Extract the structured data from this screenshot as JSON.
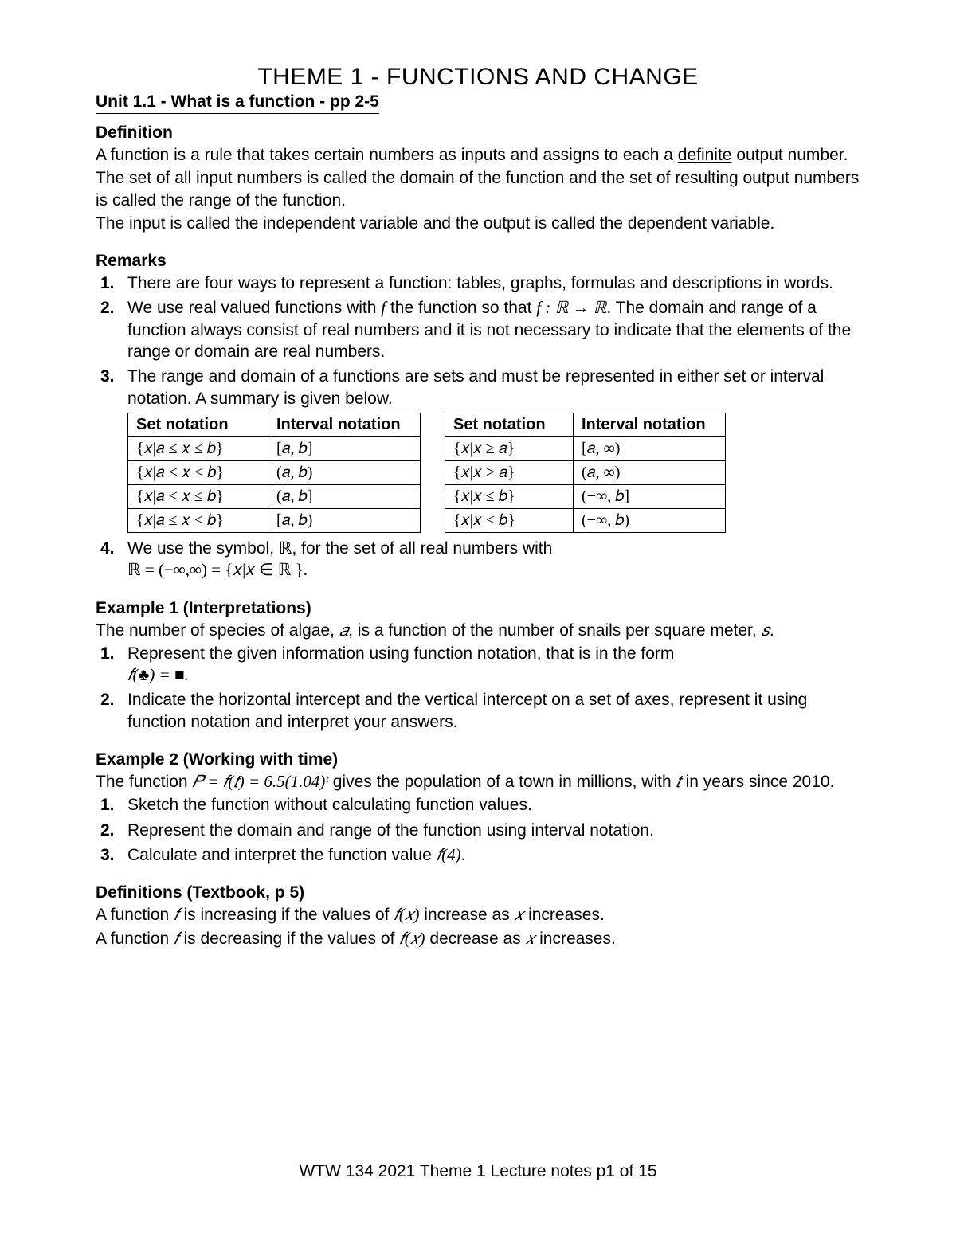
{
  "title": "THEME 1 - FUNCTIONS AND CHANGE",
  "unit_line": "Unit 1.1 -  What is a function  -  pp 2-5",
  "definition": {
    "heading": "Definition",
    "p1a": "A function is a rule that takes certain numbers as inputs and assigns to each a ",
    "p1_underlined": "definite",
    "p1b": " output number.",
    "p2": "The set of all input numbers is called the domain of the function and the set of resulting output numbers is called the range of the function.",
    "p3": "The input is called the independent variable and the output is called the dependent variable."
  },
  "remarks": {
    "heading": "Remarks",
    "items": [
      {
        "num": "1.",
        "text": "There are four ways to represent a function: tables, graphs, formulas and descriptions in words."
      },
      {
        "num": "2.",
        "text_a": "We use real valued functions with ",
        "text_f": "f",
        "text_b": " the function so that ",
        "text_map": "f : ℝ → ℝ",
        "text_c": ". The domain and range of a function always consist of real numbers and it is not necessary to indicate that the elements of the range or domain are real numbers."
      },
      {
        "num": "3.",
        "text": "The range and domain of a functions are sets and must be represented in either set or interval notation. A summary is given below."
      },
      {
        "num": "4.",
        "text_a": "We use the symbol, ℝ, for the set of all real numbers with",
        "text_line2": "ℝ = (−∞,∞) = {𝑥|𝑥 ∈ ℝ }."
      }
    ]
  },
  "table1": {
    "headers": [
      "Set notation",
      "Interval notation"
    ],
    "rows": [
      [
        "{𝑥|𝑎 ≤ 𝑥 ≤ 𝑏}",
        "[𝑎, 𝑏]"
      ],
      [
        "{𝑥|𝑎 < 𝑥 < 𝑏}",
        "(𝑎, 𝑏)"
      ],
      [
        "{𝑥|𝑎 < 𝑥 ≤ 𝑏}",
        "(𝑎, 𝑏]"
      ],
      [
        "{𝑥|𝑎 ≤ 𝑥 < 𝑏}",
        "[𝑎, 𝑏)"
      ]
    ]
  },
  "table2": {
    "headers": [
      "Set notation",
      "Interval notation"
    ],
    "rows": [
      [
        "{𝑥|𝑥 ≥ 𝑎}",
        "[𝑎, ∞)"
      ],
      [
        "{𝑥|𝑥 > 𝑎}",
        "(𝑎, ∞)"
      ],
      [
        "{𝑥|𝑥 ≤ 𝑏}",
        "(−∞, 𝑏]"
      ],
      [
        "{𝑥|𝑥 < 𝑏}",
        "(−∞, 𝑏)"
      ]
    ]
  },
  "example1": {
    "heading": "Example 1 (Interpretations)",
    "intro_a": "The number of species of algae, ",
    "intro_a_var": "𝑎",
    "intro_b": ", is a function of the number of snails per square meter, ",
    "intro_s_var": "𝑠",
    "intro_c": ".",
    "items": [
      {
        "num": "1.",
        "text_a": "Represent the given information using function notation, that is in the form",
        "text_line2": "𝑓(♣) = ■."
      },
      {
        "num": "2.",
        "text": "Indicate the horizontal intercept and the vertical intercept on a set of axes, represent it using function notation and interpret your answers."
      }
    ]
  },
  "example2": {
    "heading": "Example 2 (Working with time)",
    "intro_a": "The function  ",
    "intro_formula": "𝑃 = 𝑓(𝑡) = 6.5(1.04)ᵗ",
    "intro_b": "  gives the population of a town in millions, with  ",
    "intro_t": "𝑡",
    "intro_c": "  in years since 2010.",
    "items": [
      {
        "num": "1.",
        "text": "Sketch the function without calculating function values."
      },
      {
        "num": "2.",
        "text": "Represent the domain and range of the function using interval notation."
      },
      {
        "num": "3.",
        "text_a": "Calculate and interpret the function value ",
        "text_f4": "𝑓(4)",
        "text_b": "."
      }
    ]
  },
  "definitions2": {
    "heading": "Definitions (Textbook, p 5)",
    "p1_a": "A function ",
    "p1_f": "𝑓",
    "p1_b": " is increasing if the values of ",
    "p1_fx": "𝑓(𝑥)",
    "p1_c": "  increase as  ",
    "p1_x": "𝑥",
    "p1_d": "   increases.",
    "p2_a": "A function ",
    "p2_f": "𝑓",
    "p2_b": " is decreasing if the values of ",
    "p2_fx": "𝑓(𝑥)",
    "p2_c": "  decrease as  ",
    "p2_x": "𝑥",
    "p2_d": "  increases."
  },
  "footer": "WTW 134 2021 Theme 1 Lecture notes p1 of 15"
}
